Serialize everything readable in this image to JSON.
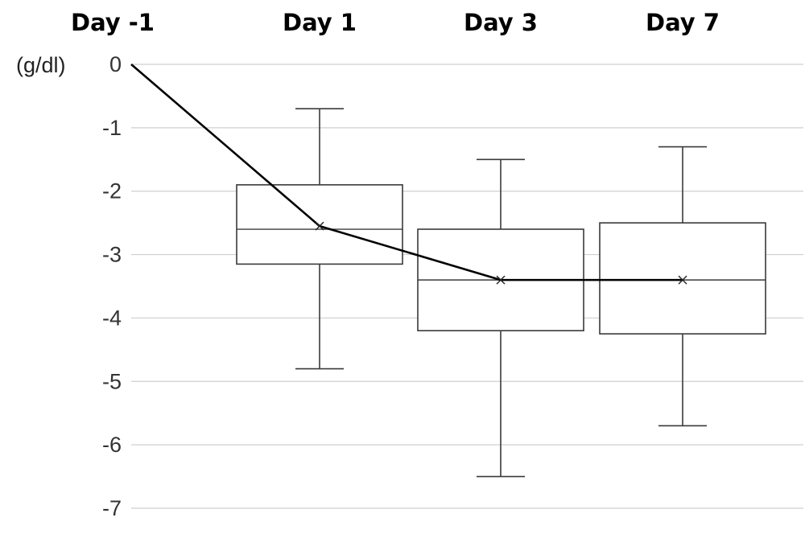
{
  "chart_data": {
    "type": "box",
    "categories": [
      "Day -1",
      "Day 1",
      "Day 3",
      "Day 7"
    ],
    "ylabel": "(g/dl)",
    "ylim": [
      -7,
      0
    ],
    "yticks": [
      0,
      -1,
      -2,
      -3,
      -4,
      -5,
      -6,
      -7
    ],
    "ytick_labels": [
      "0",
      "-1",
      "-2",
      "-3",
      "-4",
      "-5",
      "-6",
      "-7"
    ],
    "grid": true,
    "boxes": [
      {
        "category": "Day 1",
        "min": -4.8,
        "q1": -3.15,
        "median": -2.6,
        "q3": -1.9,
        "max": -0.7,
        "mean": -2.55
      },
      {
        "category": "Day 3",
        "min": -6.5,
        "q1": -4.2,
        "median": -3.4,
        "q3": -2.6,
        "max": -1.5,
        "mean": -3.4
      },
      {
        "category": "Day 7",
        "min": -5.7,
        "q1": -4.25,
        "median": -3.4,
        "q3": -2.5,
        "max": -1.3,
        "mean": -3.4
      }
    ],
    "mean_line": {
      "x": [
        "Day -1",
        "Day 1",
        "Day 3",
        "Day 7"
      ],
      "y": [
        0,
        -2.55,
        -3.4,
        -3.4
      ]
    }
  }
}
